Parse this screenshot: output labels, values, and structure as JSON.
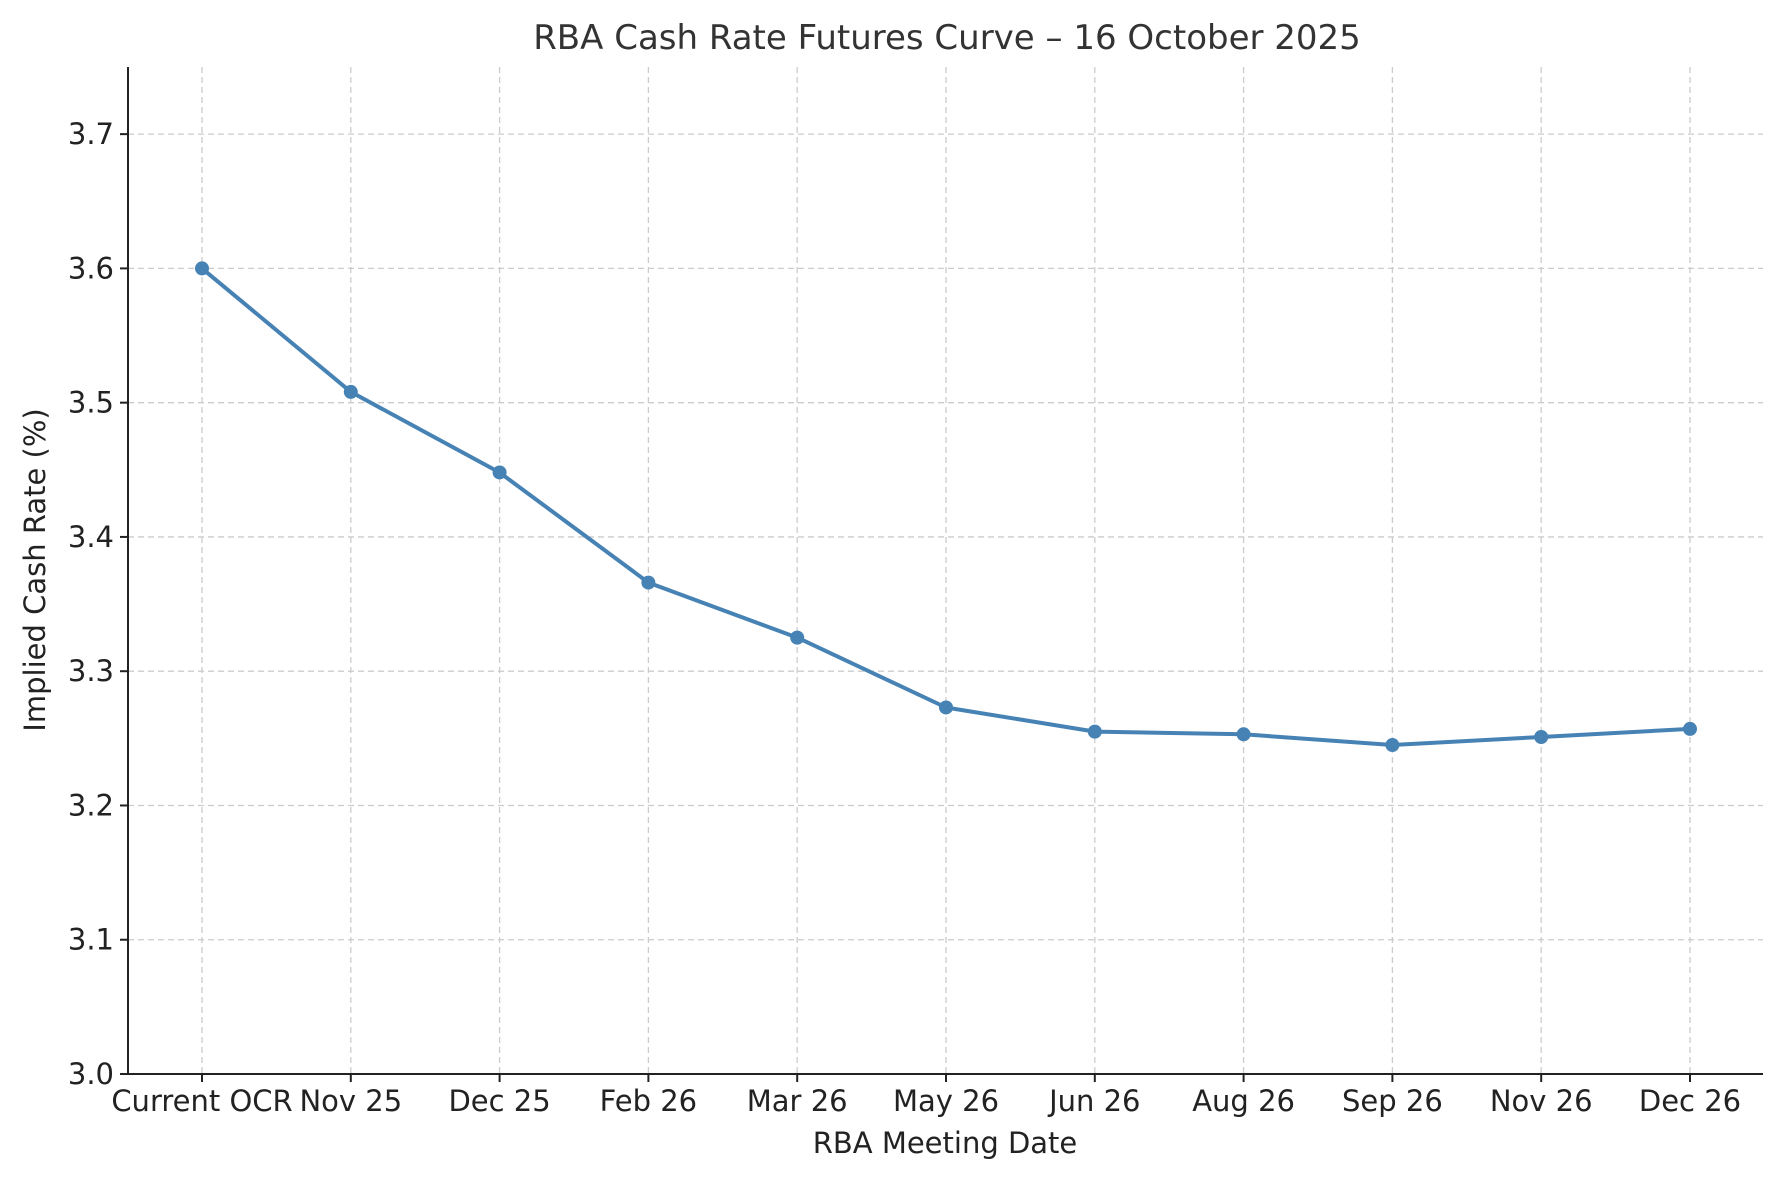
{
  "chart_data": {
    "type": "line",
    "title": "RBA Cash Rate Futures Curve – 16 October 2025",
    "xlabel": "RBA Meeting Date",
    "ylabel": "Implied Cash Rate (%)",
    "categories": [
      "Current OCR",
      "Nov 25",
      "Dec 25",
      "Feb 26",
      "Mar 26",
      "May 26",
      "Jun 26",
      "Aug 26",
      "Sep 26",
      "Nov 26",
      "Dec 26"
    ],
    "series": [
      {
        "values": [
          3.6,
          3.508,
          3.448,
          3.366,
          3.325,
          3.273,
          3.255,
          3.253,
          3.245,
          3.251,
          3.257
        ],
        "color": "#4682b4"
      }
    ],
    "ylim": [
      3.0,
      3.75
    ],
    "yticks": [
      "3.0",
      "3.1",
      "3.2",
      "3.3",
      "3.4",
      "3.5",
      "3.6",
      "3.7"
    ],
    "grid": true,
    "legend": "none"
  }
}
